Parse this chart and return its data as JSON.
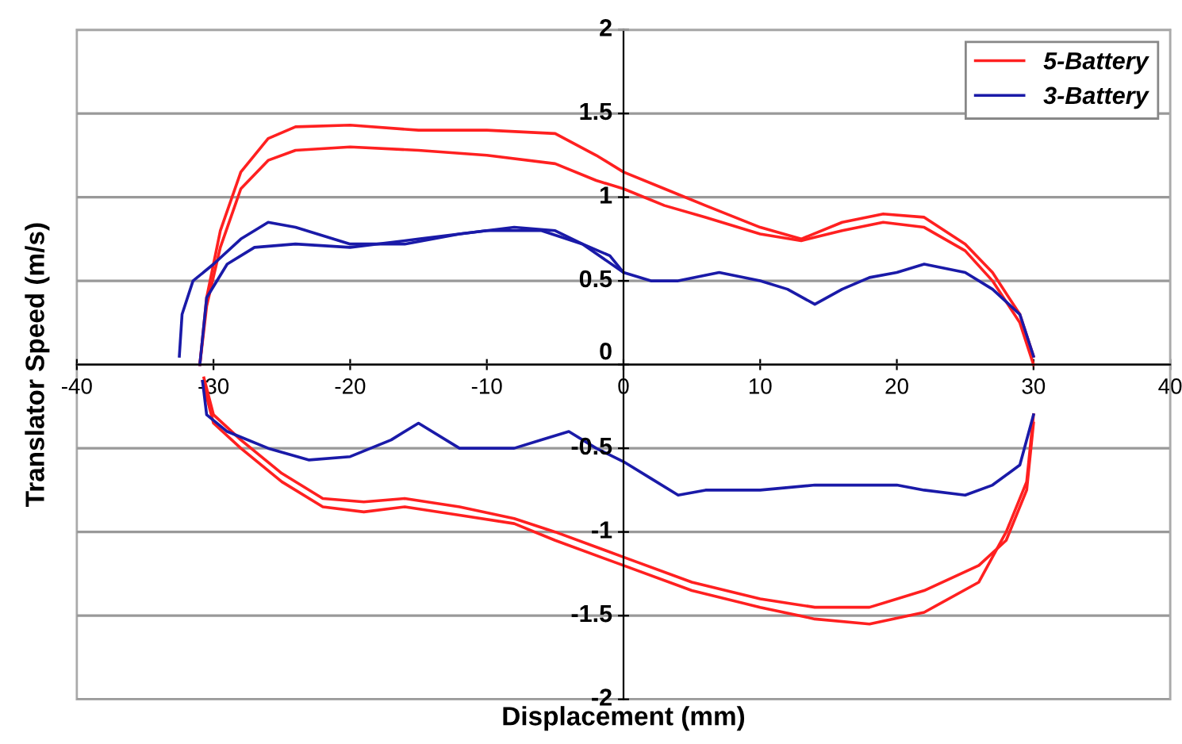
{
  "chart_data": {
    "type": "line",
    "xlabel": "Displacement (mm)",
    "ylabel": "Translator Speed (m/s)",
    "xlim": [
      -40,
      40
    ],
    "ylim": [
      -2,
      2
    ],
    "xticks": [
      -40,
      -30,
      -20,
      -10,
      0,
      10,
      20,
      30,
      40
    ],
    "yticks": [
      -2,
      -1.5,
      -1,
      -0.5,
      0,
      0.5,
      1,
      1.5,
      2
    ],
    "grid": "y",
    "legend": "top right",
    "line_style": "solid",
    "marker": "none",
    "series": [
      {
        "name": "5-Battery",
        "color": "#ff2020",
        "x": [
          -31,
          -30.5,
          -29.5,
          -28,
          -26,
          -24,
          -20,
          -15,
          -10,
          -5,
          -2,
          0,
          3,
          6,
          10,
          13,
          16,
          19,
          22,
          25,
          27,
          29,
          30
        ],
        "values": [
          0,
          0.4,
          0.8,
          1.15,
          1.35,
          1.42,
          1.43,
          1.4,
          1.4,
          1.38,
          1.25,
          1.15,
          1.05,
          0.95,
          0.82,
          0.75,
          0.85,
          0.9,
          0.88,
          0.72,
          0.55,
          0.3,
          0.05
        ]
      },
      {
        "color": "#ff2020",
        "x": [
          -30.8,
          -30,
          -28,
          -25,
          -22,
          -19,
          -16,
          -12,
          -8,
          -5,
          0,
          5,
          10,
          14,
          18,
          22,
          26,
          28,
          29.5,
          30
        ],
        "values": [
          -0.1,
          -0.35,
          -0.5,
          -0.7,
          -0.85,
          -0.88,
          -0.85,
          -0.9,
          -0.95,
          -1.05,
          -1.2,
          -1.35,
          -1.45,
          -1.52,
          -1.55,
          -1.48,
          -1.3,
          -1.0,
          -0.7,
          -0.3
        ]
      },
      {
        "color": "#ff2020",
        "x": [
          -31,
          -30.5,
          -29.5,
          -28,
          -26,
          -24,
          -20,
          -15,
          -10,
          -5,
          -2,
          0,
          3,
          6,
          10,
          13,
          16,
          19,
          22,
          25,
          27,
          29,
          30
        ],
        "values": [
          0,
          0.35,
          0.7,
          1.05,
          1.22,
          1.28,
          1.3,
          1.28,
          1.25,
          1.2,
          1.1,
          1.05,
          0.95,
          0.88,
          0.78,
          0.74,
          0.8,
          0.85,
          0.82,
          0.68,
          0.5,
          0.25,
          0
        ]
      },
      {
        "color": "#ff2020",
        "x": [
          -30.7,
          -30,
          -28,
          -25,
          -22,
          -19,
          -16,
          -12,
          -8,
          -5,
          0,
          5,
          10,
          14,
          18,
          22,
          26,
          28,
          29.5,
          30
        ],
        "values": [
          -0.08,
          -0.3,
          -0.45,
          -0.65,
          -0.8,
          -0.82,
          -0.8,
          -0.85,
          -0.92,
          -1.0,
          -1.15,
          -1.3,
          -1.4,
          -1.45,
          -1.45,
          -1.35,
          -1.2,
          -1.05,
          -0.75,
          -0.35
        ]
      },
      {
        "name": "3-Battery",
        "color": "#1a1aa8",
        "x": [
          -32.5,
          -32.3,
          -31.5,
          -30,
          -28,
          -26,
          -24,
          -20,
          -16,
          -12,
          -8,
          -5,
          -3,
          -1,
          0,
          2,
          4,
          7,
          10,
          12,
          14,
          16,
          18,
          20,
          22,
          25,
          27,
          29,
          30
        ],
        "values": [
          0.05,
          0.3,
          0.5,
          0.6,
          0.75,
          0.85,
          0.82,
          0.72,
          0.72,
          0.78,
          0.82,
          0.8,
          0.72,
          0.65,
          0.55,
          0.5,
          0.5,
          0.55,
          0.5,
          0.45,
          0.36,
          0.45,
          0.52,
          0.55,
          0.6,
          0.55,
          0.45,
          0.3,
          0.05
        ]
      },
      {
        "color": "#1a1aa8",
        "x": [
          -30.8,
          -30.5,
          -29,
          -26,
          -23,
          -20,
          -17,
          -15,
          -12,
          -8,
          -6,
          -4,
          -2,
          0,
          2,
          4,
          6,
          10,
          14,
          17,
          20,
          22,
          25,
          27,
          29,
          30
        ],
        "values": [
          -0.1,
          -0.3,
          -0.4,
          -0.5,
          -0.57,
          -0.55,
          -0.45,
          -0.35,
          -0.5,
          -0.5,
          -0.45,
          -0.4,
          -0.5,
          -0.58,
          -0.68,
          -0.78,
          -0.75,
          -0.75,
          -0.72,
          -0.72,
          -0.72,
          -0.75,
          -0.78,
          -0.72,
          -0.6,
          -0.3
        ]
      },
      {
        "color": "#1a1aa8",
        "x": [
          -31,
          -30.5,
          -29,
          -27,
          -24,
          -20,
          -15,
          -10,
          -6,
          -3,
          0
        ],
        "values": [
          0,
          0.4,
          0.6,
          0.7,
          0.72,
          0.7,
          0.75,
          0.8,
          0.8,
          0.72,
          0.55
        ]
      }
    ]
  }
}
